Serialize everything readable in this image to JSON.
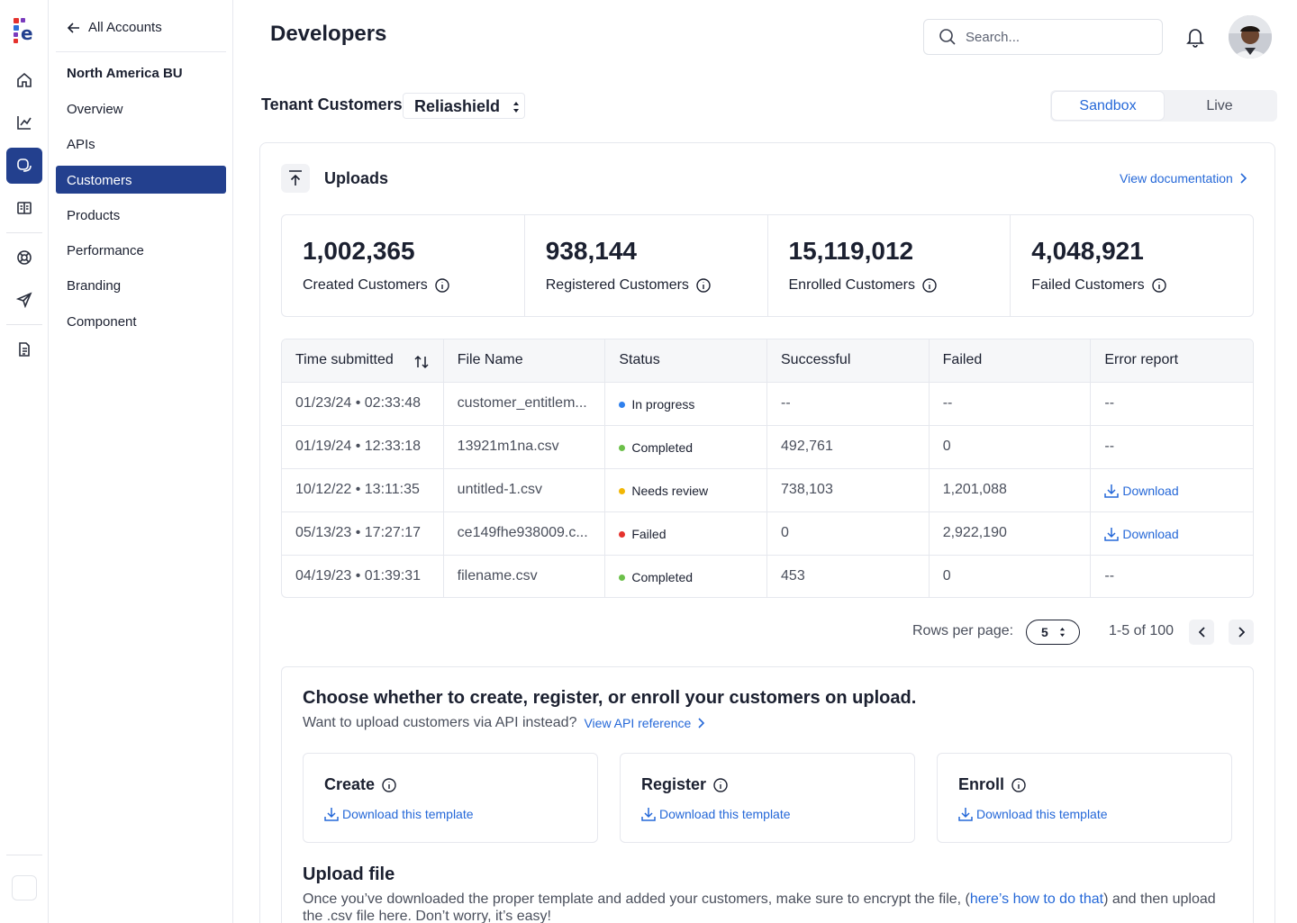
{
  "page": {
    "title": "Developers"
  },
  "search": {
    "placeholder": "Search..."
  },
  "sidebar": {
    "back_label": "All Accounts",
    "heading": "North America BU",
    "items": [
      {
        "label": "Overview",
        "active": false
      },
      {
        "label": "APIs",
        "active": false
      },
      {
        "label": "Customers",
        "active": true
      },
      {
        "label": "Products",
        "active": false
      },
      {
        "label": "Performance",
        "active": false
      },
      {
        "label": "Branding",
        "active": false
      },
      {
        "label": "Component",
        "active": false
      }
    ]
  },
  "rail": {
    "icons": [
      "home-icon",
      "chart-icon",
      "chat-icon",
      "book-icon",
      "lifebuoy-icon",
      "send-icon",
      "document-icon"
    ],
    "active": "chat-icon"
  },
  "tenant": {
    "label": "Tenant Customers",
    "selected": "Reliashield"
  },
  "env_toggle": {
    "options": [
      "Sandbox",
      "Live"
    ],
    "selected": "Sandbox"
  },
  "uploads": {
    "title": "Uploads",
    "doc_link": "View documentation",
    "stats": [
      {
        "value": "1,002,365",
        "label": "Created Customers"
      },
      {
        "value": "938,144",
        "label": "Registered Customers"
      },
      {
        "value": "15,119,012",
        "label": "Enrolled Customers"
      },
      {
        "value": "4,048,921",
        "label": "Failed Customers"
      }
    ],
    "table": {
      "columns": [
        "Time submitted",
        "File Name",
        "Status",
        "Successful",
        "Failed",
        "Error report"
      ],
      "rows": [
        {
          "time": "01/23/24 • 02:33:48",
          "file": "customer_entitlem...",
          "status": "In progress",
          "status_color": "#2f80ed",
          "successful": "--",
          "failed": "--",
          "report": "--"
        },
        {
          "time": "01/19/24 • 12:33:18",
          "file": "13921m1na.csv",
          "status": "Completed",
          "status_color": "#6cc04a",
          "successful": "492,761",
          "failed": "0",
          "report": "--"
        },
        {
          "time": "10/12/22 • 13:11:35",
          "file": "untitled-1.csv",
          "status": "Needs review",
          "status_color": "#f2b705",
          "successful": "738,103",
          "failed": "1,201,088",
          "report": "Download"
        },
        {
          "time": "05/13/23 • 17:27:17",
          "file": "ce149fhe938009.c...",
          "status": "Failed",
          "status_color": "#e5322d",
          "successful": "0",
          "failed": "2,922,190",
          "report": "Download"
        },
        {
          "time": "04/19/23 • 01:39:31",
          "file": "filename.csv",
          "status": "Completed",
          "status_color": "#6cc04a",
          "successful": "453",
          "failed": "0",
          "report": "--"
        }
      ]
    },
    "pager": {
      "rows_label": "Rows per page:",
      "rows_value": "5",
      "range": "1-5 of 100"
    }
  },
  "choose": {
    "title": "Choose whether to create, register, or enroll your customers on upload.",
    "subtitle": "Want to upload customers via API instead?",
    "api_link": "View API reference",
    "options": [
      {
        "title": "Create",
        "link": "Download this template"
      },
      {
        "title": "Register",
        "link": "Download this template"
      },
      {
        "title": "Enroll",
        "link": "Download this template"
      }
    ]
  },
  "upload_file": {
    "title": "Upload file",
    "text_before": "Once you’ve downloaded the proper template and added your customers, make sure to encrypt the file, (",
    "link": "here’s how to do that",
    "text_after": ") and then upload the .csv file here. Don’t worry, it’s easy!"
  }
}
